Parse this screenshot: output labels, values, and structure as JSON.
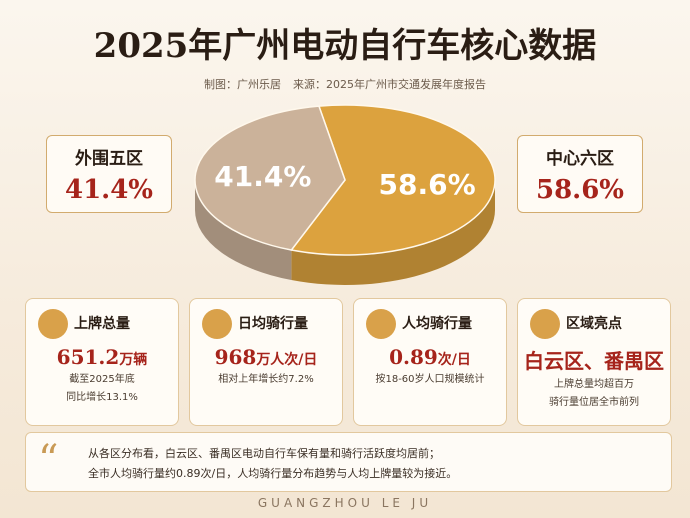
{
  "header": {
    "title": "2025年广州电动自行车核心数据",
    "credit": "制图：广州乐居",
    "source": "来源：2025年广州市交通发展年度报告"
  },
  "chart_data": {
    "type": "pie",
    "categories": [
      "外围五区",
      "中心六区"
    ],
    "values": [
      41.4,
      58.6
    ],
    "value_labels": [
      "41.4%",
      "58.6%"
    ],
    "colors": [
      "#cbb29a",
      "#dca23e"
    ]
  },
  "cards": [
    {
      "title": "上牌总量",
      "value": "651.2",
      "unit": "万辆",
      "notes": [
        "截至2025年底",
        "同比增长13.1%"
      ]
    },
    {
      "title": "日均骑行量",
      "value": "968",
      "unit": "万人次/日",
      "notes": [
        "相对上年增长约7.2%"
      ]
    },
    {
      "title": "人均骑行量",
      "value": "0.89",
      "unit": "次/日",
      "notes": [
        "按18-60岁人口规模统计"
      ]
    },
    {
      "title": "区域亮点",
      "value": "白云区、番禺区",
      "unit": "",
      "notes": [
        "上牌总量均超百万",
        "骑行量位居全市前列"
      ]
    }
  ],
  "quote": {
    "lines": [
      "从各区分布看，白云区、番禺区电动自行车保有量和骑行活跃度均居前；",
      "全市人均骑行量约0.89次/日，人均骑行量分布趋势与人均上牌量较为接近。"
    ]
  },
  "footer": {
    "brand": "GUANGZHOU LE JU"
  }
}
